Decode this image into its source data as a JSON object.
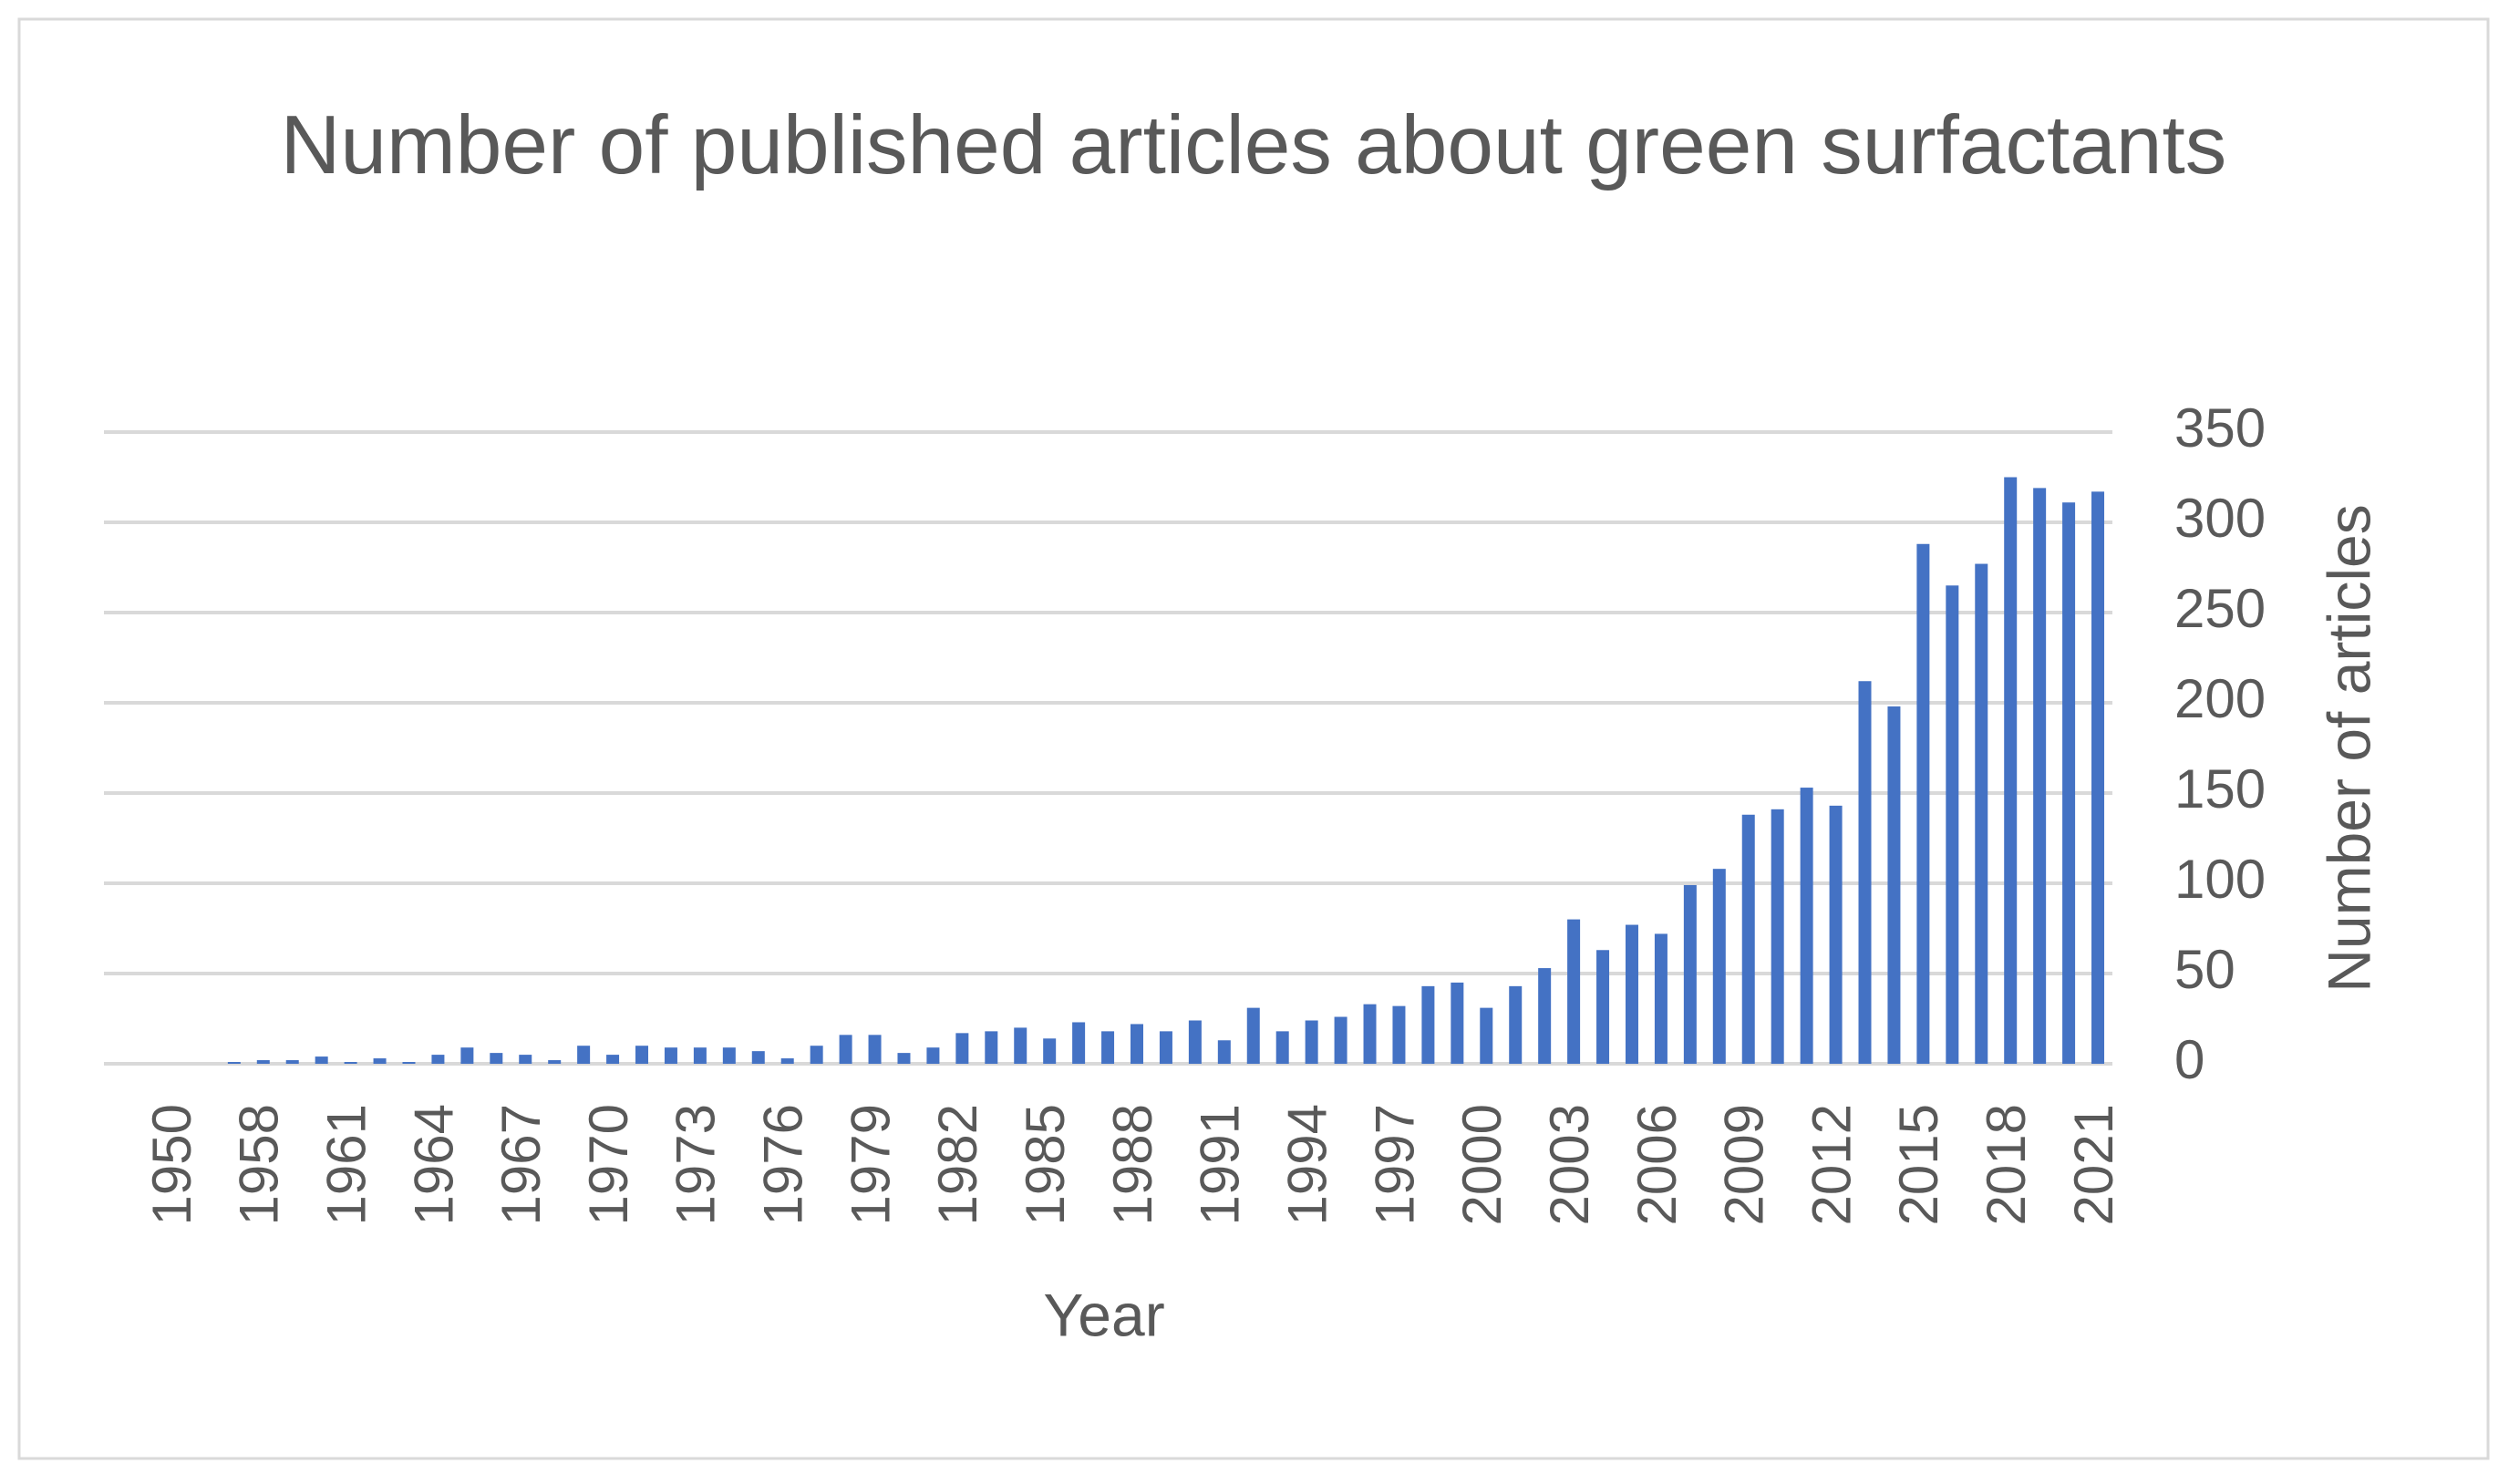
{
  "chart_data": {
    "type": "bar",
    "title": "Number of published articles about green surfactants",
    "x_label": "Year",
    "y_label": "Number of articles",
    "categories": [
      "1950",
      null,
      null,
      "1958",
      null,
      null,
      "1961",
      null,
      null,
      "1964",
      null,
      null,
      "1967",
      null,
      null,
      "1970",
      null,
      null,
      "1973",
      null,
      null,
      "1976",
      null,
      null,
      "1979",
      null,
      null,
      "1982",
      null,
      null,
      "1985",
      null,
      null,
      "1988",
      null,
      null,
      "1991",
      null,
      null,
      "1994",
      null,
      null,
      "1997",
      null,
      null,
      "2000",
      null,
      null,
      "2003",
      null,
      null,
      "2006",
      null,
      null,
      "2009",
      null,
      null,
      "2012",
      null,
      null,
      "2015",
      null,
      null,
      "2018",
      null,
      null,
      "2021"
    ],
    "values": [
      0,
      0,
      1,
      2,
      2,
      4,
      1,
      3,
      1,
      5,
      9,
      6,
      5,
      2,
      10,
      5,
      10,
      9,
      9,
      9,
      7,
      3,
      10,
      16,
      16,
      6,
      9,
      17,
      18,
      20,
      14,
      23,
      18,
      22,
      18,
      24,
      13,
      31,
      18,
      24,
      26,
      33,
      32,
      43,
      45,
      31,
      43,
      53,
      80,
      63,
      77,
      72,
      99,
      108,
      138,
      141,
      153,
      143,
      212,
      198,
      288,
      265,
      277,
      325,
      319,
      311,
      317
    ],
    "color": "#4472c4",
    "ylim": [
      0,
      350
    ],
    "yticks": [
      0,
      50,
      100,
      150,
      200,
      250,
      300,
      350
    ],
    "grid": true,
    "y_axis_side": "right"
  }
}
